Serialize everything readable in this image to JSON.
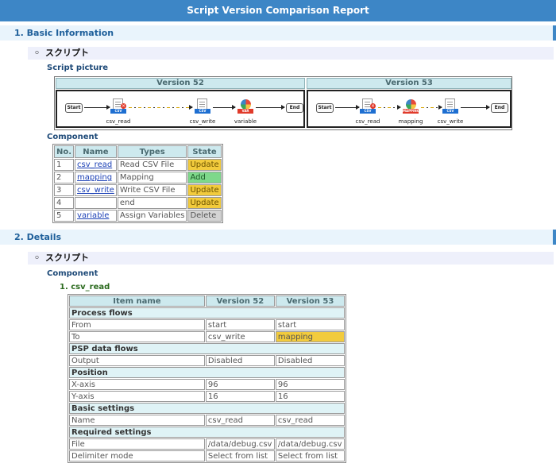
{
  "report_title": "Script Version Comparison Report",
  "sections": {
    "basic": "1. Basic Information",
    "details": "2. Details"
  },
  "subsections": {
    "basic_script": "スクリプト",
    "details_script": "スクリプト",
    "bullet": "◦"
  },
  "headings": {
    "script_picture": "Script picture",
    "component_basic": "Component",
    "component_details": "Component",
    "detail_item": "1. csv_read"
  },
  "script_picture": {
    "v52_header": "Version 52",
    "v53_header": "Version 53",
    "start_label": "Start",
    "end_label": "End",
    "tag_csv": "CSV",
    "tag_var": "VAR",
    "tag_mapping": "MAPPING",
    "v52_nodes": [
      "csv_read",
      "csv_write",
      "variable"
    ],
    "v53_nodes": [
      "csv_read",
      "mapping",
      "csv_write"
    ]
  },
  "component_table": {
    "headers": [
      "No.",
      "Name",
      "Types",
      "State"
    ],
    "rows": [
      {
        "no": "1",
        "name": "csv_read",
        "type": "Read CSV File",
        "state": "Update"
      },
      {
        "no": "2",
        "name": "mapping",
        "type": "Mapping",
        "state": "Add"
      },
      {
        "no": "3",
        "name": "csv_write",
        "type": "Write CSV File",
        "state": "Update"
      },
      {
        "no": "4",
        "name": "",
        "type": "end",
        "state": "Update"
      },
      {
        "no": "5",
        "name": "variable",
        "type": "Assign Variables",
        "state": "Delete"
      }
    ]
  },
  "detail_table": {
    "headers": [
      "Item name",
      "Version 52",
      "Version 53"
    ],
    "groups": {
      "process_flows": "Process flows",
      "psp_data_flows": "PSP data flows",
      "position": "Position",
      "basic_settings": "Basic settings",
      "required_settings": "Required settings"
    },
    "rows": {
      "from": [
        "From",
        "start",
        "start"
      ],
      "to": [
        "To",
        "csv_write",
        "mapping"
      ],
      "output": [
        "Output",
        "Disabled",
        "Disabled"
      ],
      "x_axis": [
        "X-axis",
        "96",
        "96"
      ],
      "y_axis": [
        "Y-axis",
        "16",
        "16"
      ],
      "name": [
        "Name",
        "csv_read",
        "csv_read"
      ],
      "file": [
        "File",
        "/data/debug.csv",
        "/data/debug.csv"
      ],
      "delimiter": [
        "Delimiter mode",
        "Select from list",
        "Select from list"
      ]
    }
  },
  "colors": {
    "title_bar": "#3d86c6",
    "section_bg": "#e9f4fc",
    "update": "#f2cb3d",
    "add": "#7ed88b",
    "delete": "#d4d4d4"
  }
}
